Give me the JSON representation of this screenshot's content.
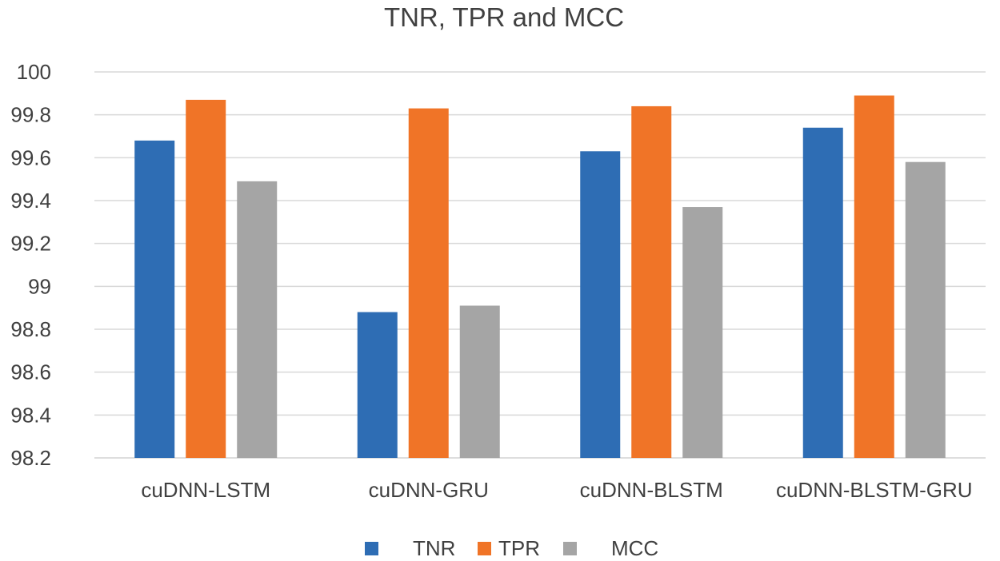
{
  "chart_data": {
    "type": "bar",
    "title": "TNR, TPR and MCC",
    "xlabel": "",
    "ylabel": "",
    "categories": [
      "cuDNN-LSTM",
      "cuDNN-GRU",
      "cuDNN-BLSTM",
      "cuDNN-BLSTM-GRU"
    ],
    "series": [
      {
        "name": "TNR",
        "color": "#2e6db4",
        "values": [
          99.68,
          98.88,
          99.63,
          99.74
        ]
      },
      {
        "name": "TPR",
        "color": "#f07427",
        "values": [
          99.87,
          99.83,
          99.84,
          99.89
        ]
      },
      {
        "name": "MCC",
        "color": "#a5a5a5",
        "values": [
          99.49,
          98.91,
          99.37,
          99.58
        ]
      }
    ],
    "ylim": [
      98.2,
      100
    ],
    "yticks": [
      "98.2",
      "98.4",
      "98.6",
      "98.8",
      "99",
      "99.2",
      "99.4",
      "99.6",
      "99.8",
      "100"
    ],
    "grid": true,
    "legend_position": "bottom"
  }
}
